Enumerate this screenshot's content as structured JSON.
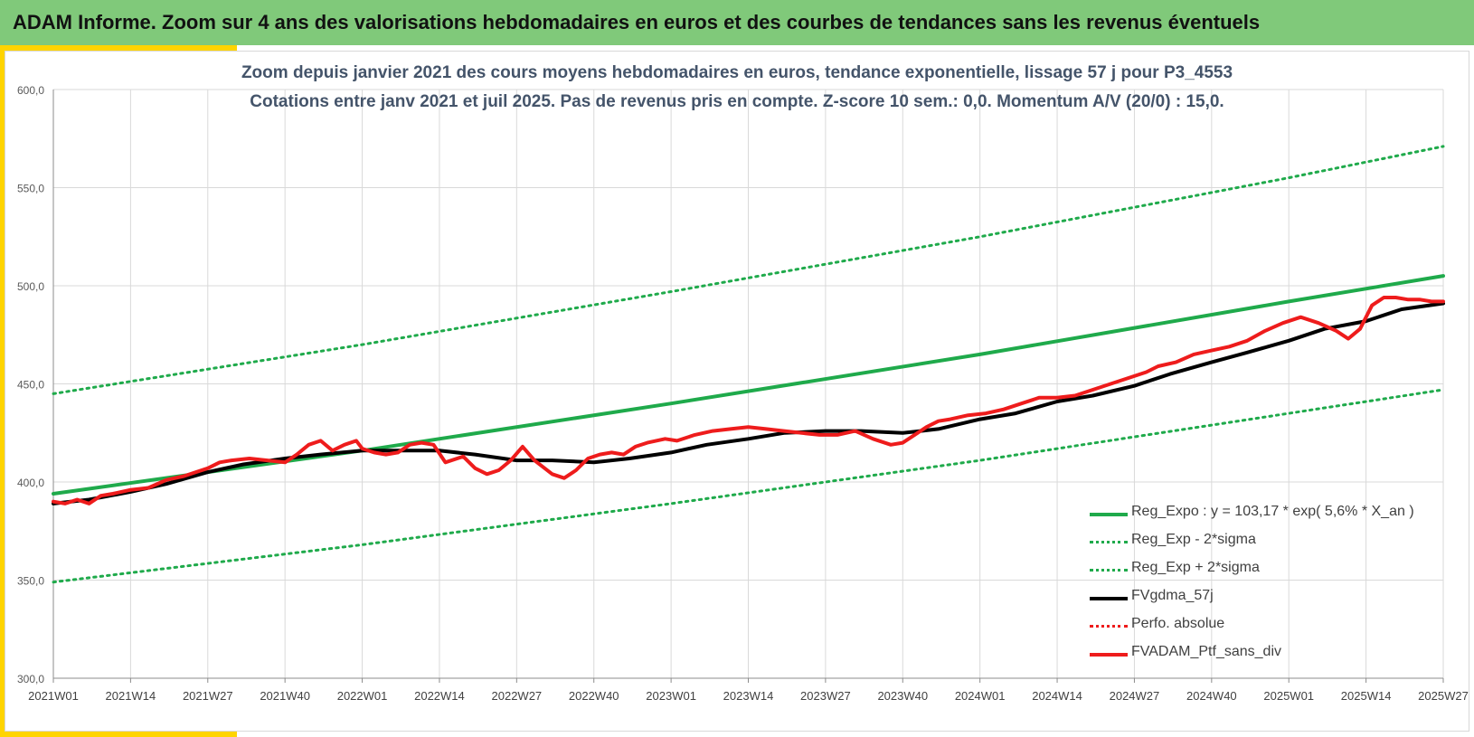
{
  "header": {
    "title": "ADAM Informe. Zoom sur 4 ans des valorisations hebdomadaires en euros et des courbes de tendances sans les revenus éventuels"
  },
  "colors": {
    "banner": "#80c97a",
    "accent": "#ffd400",
    "trend": "#1faa4b",
    "smooth": "#000000",
    "portfolio": "#ee1c1c"
  },
  "chart_data": {
    "type": "line",
    "title_line1": "Zoom depuis janvier 2021 des cours moyens hebdomadaires  en euros, tendance exponentielle, lissage 57 j pour P3_4553",
    "title_line2": "Cotations entre janv 2021 et juil 2025. Pas de revenus pris en compte. Z-score 10 sem.: 0,0. Momentum A/V (20/0) : 15,0.",
    "xlabel": "",
    "ylabel": "",
    "ylim": [
      300,
      600
    ],
    "yticks": [
      "300,0",
      "350,0",
      "400,0",
      "450,0",
      "500,0",
      "550,0",
      "600,0"
    ],
    "xticks": [
      "2021W01",
      "2021W14",
      "2021W27",
      "2021W40",
      "2022W01",
      "2022W14",
      "2022W27",
      "2022W40",
      "2023W01",
      "2023W14",
      "2023W27",
      "2023W40",
      "2024W01",
      "2024W14",
      "2024W27",
      "2024W40",
      "2025W01",
      "2025W14",
      "2025W27"
    ],
    "grid": true,
    "legend_position": "bottom-right",
    "series": [
      {
        "name": "Reg_Expo : y = 103,17 * exp( 5,6% *  X_an )",
        "style": "solid",
        "color": "#1faa4b",
        "x": [
          "2021W01",
          "2022W01",
          "2023W01",
          "2024W01",
          "2025W01",
          "2025W27"
        ],
        "values": [
          394,
          416,
          440,
          465,
          492,
          505
        ]
      },
      {
        "name": "Reg_Exp - 2*sigma",
        "style": "dotted",
        "color": "#1faa4b",
        "x": [
          "2021W01",
          "2022W01",
          "2023W01",
          "2024W01",
          "2025W01",
          "2025W27"
        ],
        "values": [
          349,
          368,
          389,
          411,
          435,
          447
        ]
      },
      {
        "name": "Reg_Exp + 2*sigma",
        "style": "dotted",
        "color": "#1faa4b",
        "x": [
          "2021W01",
          "2022W01",
          "2023W01",
          "2024W01",
          "2025W01",
          "2025W27"
        ],
        "values": [
          445,
          470,
          497,
          525,
          555,
          571
        ]
      },
      {
        "name": "FVgdma_57j",
        "style": "solid",
        "color": "#000000",
        "x": [
          "2021W01",
          "2021W07",
          "2021W14",
          "2021W20",
          "2021W27",
          "2021W33",
          "2021W40",
          "2021W46",
          "2022W01",
          "2022W07",
          "2022W14",
          "2022W20",
          "2022W27",
          "2022W33",
          "2022W40",
          "2022W46",
          "2023W01",
          "2023W07",
          "2023W14",
          "2023W20",
          "2023W27",
          "2023W33",
          "2023W40",
          "2023W46",
          "2024W01",
          "2024W07",
          "2024W14",
          "2024W20",
          "2024W27",
          "2024W33",
          "2024W40",
          "2024W46",
          "2025W01",
          "2025W07",
          "2025W14",
          "2025W20",
          "2025W27"
        ],
        "values": [
          389,
          391,
          395,
          399,
          405,
          409,
          412,
          414,
          416,
          416,
          416,
          414,
          411,
          411,
          410,
          412,
          415,
          419,
          422,
          425,
          426,
          426,
          425,
          427,
          432,
          435,
          441,
          444,
          449,
          455,
          461,
          466,
          472,
          478,
          482,
          488,
          491
        ]
      },
      {
        "name": "Perfo. absolue",
        "style": "dotted",
        "color": "#ee1c1c",
        "x": [],
        "values": []
      },
      {
        "name": "FVADAM_Ptf_sans_div",
        "style": "solid",
        "color": "#ee1c1c",
        "x": [
          "2021W01",
          "2021W03",
          "2021W05",
          "2021W07",
          "2021W09",
          "2021W11",
          "2021W14",
          "2021W17",
          "2021W20",
          "2021W23",
          "2021W25",
          "2021W27",
          "2021W29",
          "2021W31",
          "2021W34",
          "2021W37",
          "2021W40",
          "2021W42",
          "2021W44",
          "2021W46",
          "2021W48",
          "2021W50",
          "2021W52",
          "2022W01",
          "2022W03",
          "2022W05",
          "2022W07",
          "2022W09",
          "2022W11",
          "2022W13",
          "2022W15",
          "2022W18",
          "2022W20",
          "2022W22",
          "2022W24",
          "2022W26",
          "2022W28",
          "2022W30",
          "2022W33",
          "2022W35",
          "2022W37",
          "2022W39",
          "2022W41",
          "2022W43",
          "2022W45",
          "2022W47",
          "2022W49",
          "2022W52",
          "2023W02",
          "2023W05",
          "2023W08",
          "2023W11",
          "2023W14",
          "2023W17",
          "2023W20",
          "2023W23",
          "2023W26",
          "2023W29",
          "2023W32",
          "2023W35",
          "2023W38",
          "2023W40",
          "2023W42",
          "2023W44",
          "2023W46",
          "2023W48",
          "2023W51",
          "2024W02",
          "2024W05",
          "2024W08",
          "2024W11",
          "2024W14",
          "2024W17",
          "2024W20",
          "2024W23",
          "2024W26",
          "2024W29",
          "2024W31",
          "2024W34",
          "2024W37",
          "2024W40",
          "2024W43",
          "2024W46",
          "2024W49",
          "2024W52",
          "2025W03",
          "2025W06",
          "2025W09",
          "2025W11",
          "2025W13",
          "2025W14",
          "2025W15",
          "2025W17",
          "2025W19",
          "2025W21",
          "2025W23",
          "2025W25",
          "2025W27"
        ],
        "values": [
          390,
          389,
          391,
          389,
          393,
          394,
          396,
          397,
          401,
          403,
          405,
          407,
          410,
          411,
          412,
          411,
          410,
          414,
          419,
          421,
          416,
          419,
          421,
          417,
          415,
          414,
          415,
          419,
          420,
          419,
          410,
          413,
          407,
          404,
          406,
          411,
          418,
          411,
          404,
          402,
          406,
          412,
          414,
          415,
          414,
          418,
          420,
          422,
          421,
          424,
          426,
          427,
          428,
          427,
          426,
          425,
          424,
          424,
          426,
          422,
          419,
          420,
          424,
          428,
          431,
          432,
          434,
          435,
          437,
          440,
          443,
          443,
          444,
          447,
          450,
          453,
          456,
          459,
          461,
          465,
          467,
          469,
          472,
          477,
          481,
          484,
          481,
          477,
          473,
          478,
          484,
          490,
          494,
          494,
          493,
          493,
          492,
          492
        ]
      }
    ]
  }
}
